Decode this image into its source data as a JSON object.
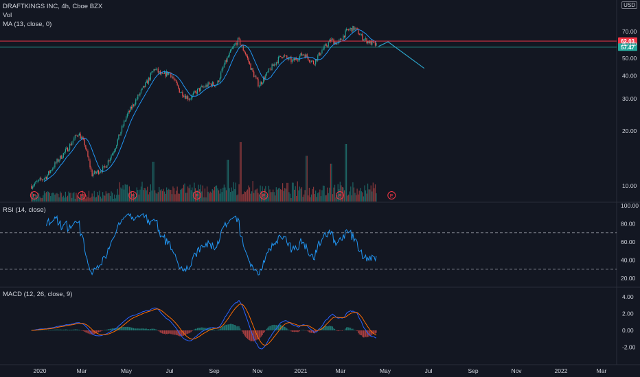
{
  "header": {
    "symbol": "DRAFTKINGS INC, 4h, Cboe BZX",
    "volume_label": "Vol",
    "ma_label": "MA (13, close, 0)",
    "rsi_label": "RSI (14, close)",
    "macd_label": "MACD (12, 26, close, 9)",
    "currency": "USD"
  },
  "colors": {
    "background": "#131722",
    "up": "#26a69a",
    "down": "#ef5350",
    "ma": "#2196f3",
    "rsi": "#2196f3",
    "macd": "#2962ff",
    "signal": "#ff6d00",
    "resistance": "#f23645",
    "support": "#26a69a",
    "projection": "#2ba3c9",
    "event": "#f23645"
  },
  "chart_data": [
    {
      "type": "candlestick",
      "pane": "price",
      "scale": "log",
      "y_ticks": [
        "70.00",
        "60.00",
        "50.00",
        "40.00",
        "30.00",
        "20.00",
        "10.00"
      ],
      "y_tick_values": [
        70,
        60,
        50,
        40,
        30,
        20,
        10
      ],
      "x_labels": [
        "2020",
        "Mar",
        "May",
        "Jul",
        "Sep",
        "Nov",
        "2021",
        "Mar",
        "May",
        "Jul",
        "Sep",
        "Nov",
        "2022",
        "Mar"
      ],
      "close_path": [
        {
          "t": "2019-12-20",
          "v": 10.0
        },
        {
          "t": "2020-01-10",
          "v": 11.2
        },
        {
          "t": "2020-01-25",
          "v": 13.5
        },
        {
          "t": "2020-02-10",
          "v": 16.0
        },
        {
          "t": "2020-02-25",
          "v": 19.5
        },
        {
          "t": "2020-03-05",
          "v": 17.0
        },
        {
          "t": "2020-03-15",
          "v": 11.5
        },
        {
          "t": "2020-04-01",
          "v": 12.5
        },
        {
          "t": "2020-04-15",
          "v": 16.0
        },
        {
          "t": "2020-05-01",
          "v": 24.0
        },
        {
          "t": "2020-05-20",
          "v": 32.0
        },
        {
          "t": "2020-06-01",
          "v": 38.0
        },
        {
          "t": "2020-06-10",
          "v": 44.0
        },
        {
          "t": "2020-06-20",
          "v": 40.0
        },
        {
          "t": "2020-07-01",
          "v": 42.0
        },
        {
          "t": "2020-07-15",
          "v": 33.0
        },
        {
          "t": "2020-07-28",
          "v": 30.0
        },
        {
          "t": "2020-08-10",
          "v": 33.5
        },
        {
          "t": "2020-08-25",
          "v": 36.0
        },
        {
          "t": "2020-09-05",
          "v": 36.0
        },
        {
          "t": "2020-09-15",
          "v": 46.0
        },
        {
          "t": "2020-09-25",
          "v": 55.0
        },
        {
          "t": "2020-10-05",
          "v": 63.0
        },
        {
          "t": "2020-10-15",
          "v": 53.0
        },
        {
          "t": "2020-10-25",
          "v": 42.0
        },
        {
          "t": "2020-11-03",
          "v": 35.5
        },
        {
          "t": "2020-11-20",
          "v": 44.0
        },
        {
          "t": "2020-12-05",
          "v": 52.0
        },
        {
          "t": "2020-12-20",
          "v": 48.0
        },
        {
          "t": "2021-01-05",
          "v": 53.0
        },
        {
          "t": "2021-01-20",
          "v": 47.0
        },
        {
          "t": "2021-02-01",
          "v": 55.0
        },
        {
          "t": "2021-02-15",
          "v": 63.0
        },
        {
          "t": "2021-02-25",
          "v": 60.0
        },
        {
          "t": "2021-03-10",
          "v": 71.0
        },
        {
          "t": "2021-03-20",
          "v": 73.0
        },
        {
          "t": "2021-04-01",
          "v": 64.0
        },
        {
          "t": "2021-04-10",
          "v": 61.0
        },
        {
          "t": "2021-04-20",
          "v": 58.5
        }
      ],
      "ma_period": 13,
      "resistance_price": 62.03,
      "resistance_label": "62.03",
      "current_price": 57.47,
      "current_label": "57.47",
      "projection": [
        {
          "t": "2021-04-22",
          "v": 58.0
        },
        {
          "t": "2021-05-05",
          "v": 61.5
        },
        {
          "t": "2021-06-25",
          "v": 44.0
        }
      ],
      "earnings_events": [
        "2019-12-24",
        "2020-03-01",
        "2020-05-10",
        "2020-08-08",
        "2020-11-10",
        "2021-02-28",
        "2021-05-10"
      ],
      "event_label": "E"
    },
    {
      "type": "histogram",
      "pane": "volume",
      "label": "Vol",
      "spikes": [
        {
          "t": "2020-06-08",
          "v": 1.6
        },
        {
          "t": "2020-09-20",
          "v": 1.7
        },
        {
          "t": "2020-10-08",
          "v": 2.6
        },
        {
          "t": "2021-01-10",
          "v": 1.9
        },
        {
          "t": "2021-02-15",
          "v": 1.5
        },
        {
          "t": "2021-03-08",
          "v": 2.5
        }
      ]
    },
    {
      "type": "line",
      "pane": "rsi",
      "y_ticks": [
        "100.00",
        "80.00",
        "60.00",
        "40.00",
        "20.00"
      ],
      "y_tick_values": [
        100,
        80,
        60,
        40,
        20
      ],
      "upper_band": 70,
      "lower_band": 30
    },
    {
      "type": "line",
      "pane": "macd",
      "y_ticks": [
        "4.00",
        "2.00",
        "0.00",
        "-2.00"
      ],
      "y_tick_values": [
        4,
        2,
        0,
        -2
      ],
      "series": [
        {
          "name": "MACD"
        },
        {
          "name": "Signal"
        },
        {
          "name": "Histogram"
        }
      ]
    }
  ]
}
